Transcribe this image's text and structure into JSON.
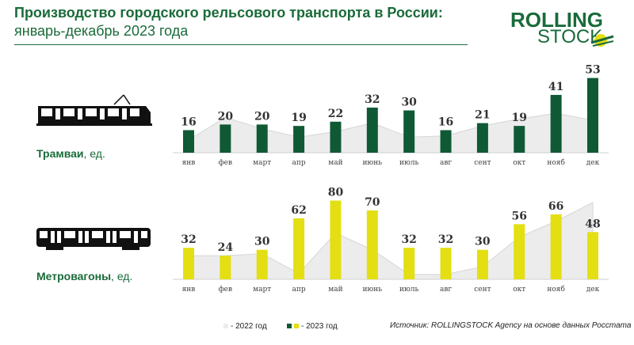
{
  "header": {
    "title": "Производство городского рельсового транспорта в России:",
    "subtitle": "январь-декабрь 2023 года"
  },
  "logo": {
    "line1": "ROLLING",
    "line2": "STOCK"
  },
  "colors": {
    "brand": "#1a6b3a",
    "tram_bar": "#0f5a35",
    "metro_bar": "#e3df12",
    "area_2022": "#ececec",
    "area_line": "#d6d6d6"
  },
  "chart_data": [
    {
      "type": "bar",
      "title": "Трамваи, ед.",
      "label_bold": "Трамваи",
      "label_unit": ", ед.",
      "categories": [
        "янв",
        "фев",
        "март",
        "апр",
        "май",
        "июнь",
        "июль",
        "авг",
        "сент",
        "окт",
        "нояб",
        "дек"
      ],
      "series": [
        {
          "name": "2023 год",
          "values": [
            16,
            20,
            20,
            19,
            22,
            32,
            30,
            16,
            21,
            19,
            41,
            53
          ]
        },
        {
          "name": "2022 год",
          "style": "area",
          "values": [
            9,
            25,
            17,
            11,
            15,
            21,
            11,
            12,
            19,
            24,
            28,
            23
          ]
        }
      ],
      "ylim": [
        0,
        55
      ]
    },
    {
      "type": "bar",
      "title": "Метровагоны, ед.",
      "label_bold": "Метровагоны",
      "label_unit": ", ед.",
      "categories": [
        "янв",
        "фев",
        "март",
        "апр",
        "май",
        "июнь",
        "июль",
        "авг",
        "сент",
        "окт",
        "нояб",
        "дек"
      ],
      "series": [
        {
          "name": "2023 год",
          "values": [
            32,
            24,
            30,
            62,
            80,
            70,
            32,
            32,
            30,
            56,
            66,
            48
          ]
        },
        {
          "name": "2022 год",
          "style": "area",
          "values": [
            24,
            24,
            26,
            6,
            47,
            30,
            5,
            5,
            13,
            43,
            59,
            78
          ]
        }
      ],
      "ylim": [
        0,
        82
      ]
    }
  ],
  "legend": {
    "label_2022": "- 2022 год",
    "label_2023": "- 2023 год"
  },
  "source": "Источник: ROLLINGSTOCK Agency на основе данных Росстата"
}
